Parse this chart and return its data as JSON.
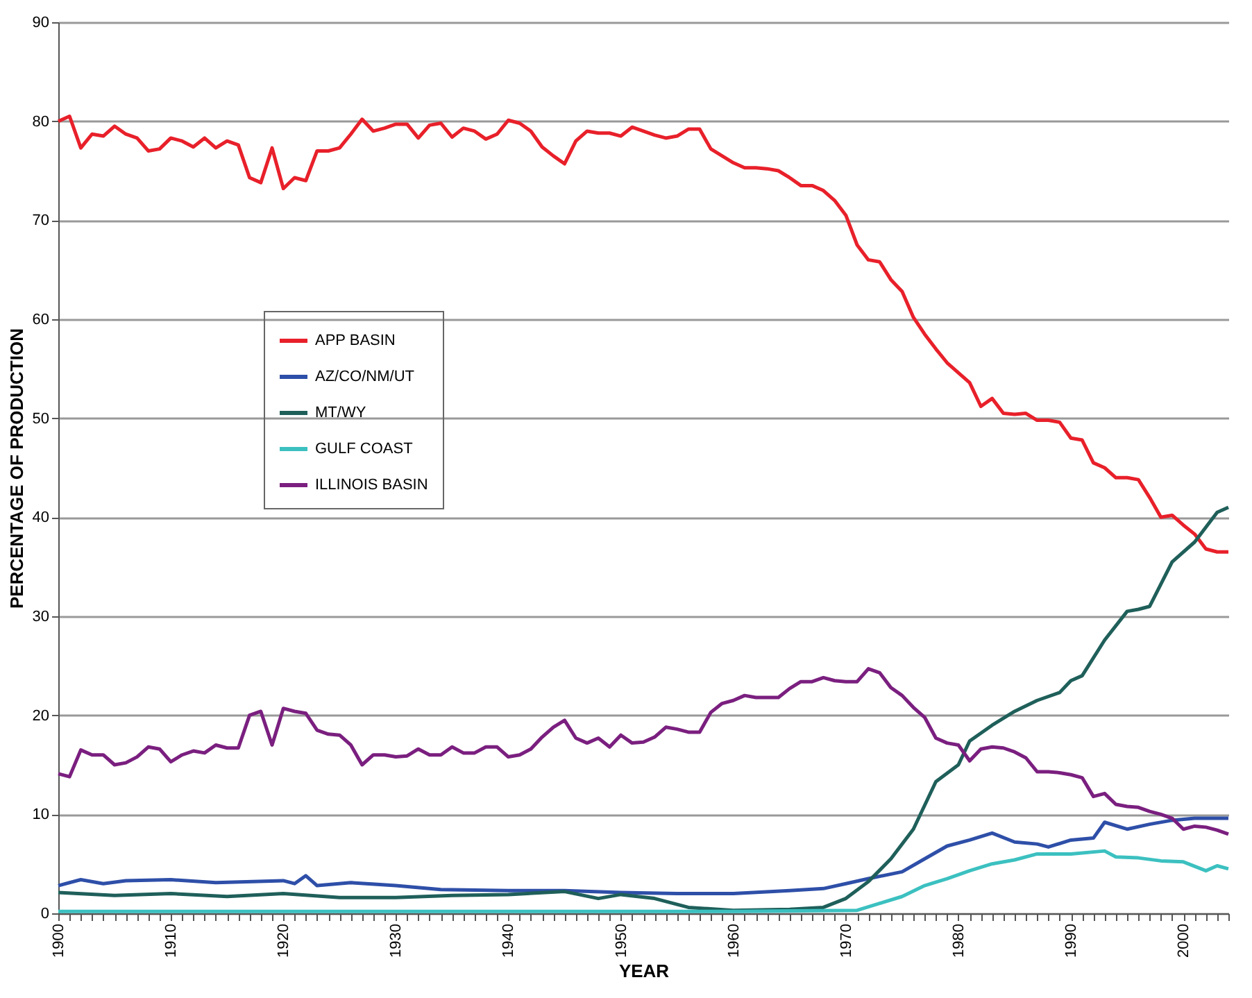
{
  "chart_data": {
    "type": "line",
    "xlabel": "YEAR",
    "ylabel": "PERCENTAGE OF PRODUCTION",
    "xlim": [
      1900,
      2004
    ],
    "ylim": [
      0,
      90
    ],
    "yticks": [
      0,
      10,
      20,
      30,
      40,
      50,
      60,
      70,
      80,
      90
    ],
    "xticks": [
      1900,
      {
        "value": 1901,
        "label": null
      },
      {
        "value": 1902,
        "label": null
      },
      {
        "value": 1903,
        "label": null
      },
      {
        "value": 1904,
        "label": null
      },
      {
        "value": 1905,
        "label": null
      },
      {
        "value": 1906,
        "label": null
      },
      {
        "value": 1907,
        "label": null
      },
      {
        "value": 1908,
        "label": null
      },
      {
        "value": 1909,
        "label": null
      },
      1910,
      {
        "value": 1911,
        "label": null
      },
      {
        "value": 1912,
        "label": null
      },
      {
        "value": 1913,
        "label": null
      },
      {
        "value": 1914,
        "label": null
      },
      {
        "value": 1915,
        "label": null
      },
      {
        "value": 1916,
        "label": null
      },
      {
        "value": 1917,
        "label": null
      },
      {
        "value": 1918,
        "label": null
      },
      {
        "value": 1919,
        "label": null
      },
      1920,
      {
        "value": 1921,
        "label": null
      },
      {
        "value": 1922,
        "label": null
      },
      {
        "value": 1923,
        "label": null
      },
      {
        "value": 1924,
        "label": null
      },
      {
        "value": 1925,
        "label": null
      },
      {
        "value": 1926,
        "label": null
      },
      {
        "value": 1927,
        "label": null
      },
      {
        "value": 1928,
        "label": null
      },
      {
        "value": 1929,
        "label": null
      },
      1930,
      {
        "value": 1931,
        "label": null
      },
      {
        "value": 1932,
        "label": null
      },
      {
        "value": 1933,
        "label": null
      },
      {
        "value": 1934,
        "label": null
      },
      {
        "value": 1935,
        "label": null
      },
      {
        "value": 1936,
        "label": null
      },
      {
        "value": 1937,
        "label": null
      },
      {
        "value": 1938,
        "label": null
      },
      {
        "value": 1939,
        "label": null
      },
      1940,
      {
        "value": 1941,
        "label": null
      },
      {
        "value": 1942,
        "label": null
      },
      {
        "value": 1943,
        "label": null
      },
      {
        "value": 1944,
        "label": null
      },
      {
        "value": 1945,
        "label": null
      },
      {
        "value": 1946,
        "label": null
      },
      {
        "value": 1947,
        "label": null
      },
      {
        "value": 1948,
        "label": null
      },
      {
        "value": 1949,
        "label": null
      },
      1950,
      {
        "value": 1951,
        "label": null
      },
      {
        "value": 1952,
        "label": null
      },
      {
        "value": 1953,
        "label": null
      },
      {
        "value": 1954,
        "label": null
      },
      {
        "value": 1955,
        "label": null
      },
      {
        "value": 1956,
        "label": null
      },
      {
        "value": 1957,
        "label": null
      },
      {
        "value": 1958,
        "label": null
      },
      {
        "value": 1959,
        "label": null
      },
      1960,
      {
        "value": 1961,
        "label": null
      },
      {
        "value": 1962,
        "label": null
      },
      {
        "value": 1963,
        "label": null
      },
      {
        "value": 1964,
        "label": null
      },
      {
        "value": 1965,
        "label": null
      },
      {
        "value": 1966,
        "label": null
      },
      {
        "value": 1967,
        "label": null
      },
      {
        "value": 1968,
        "label": null
      },
      {
        "value": 1969,
        "label": null
      },
      1970,
      {
        "value": 1971,
        "label": null
      },
      {
        "value": 1972,
        "label": null
      },
      {
        "value": 1973,
        "label": null
      },
      {
        "value": 1974,
        "label": null
      },
      {
        "value": 1975,
        "label": null
      },
      {
        "value": 1976,
        "label": null
      },
      {
        "value": 1977,
        "label": null
      },
      {
        "value": 1978,
        "label": null
      },
      {
        "value": 1979,
        "label": null
      },
      1980,
      {
        "value": 1981,
        "label": null
      },
      {
        "value": 1982,
        "label": null
      },
      {
        "value": 1983,
        "label": null
      },
      {
        "value": 1984,
        "label": null
      },
      {
        "value": 1985,
        "label": null
      },
      {
        "value": 1986,
        "label": null
      },
      {
        "value": 1987,
        "label": null
      },
      {
        "value": 1988,
        "label": null
      },
      {
        "value": 1989,
        "label": null
      },
      1990,
      {
        "value": 1991,
        "label": null
      },
      {
        "value": 1992,
        "label": null
      },
      {
        "value": 1993,
        "label": null
      },
      {
        "value": 1994,
        "label": null
      },
      {
        "value": 1995,
        "label": null
      },
      {
        "value": 1996,
        "label": null
      },
      {
        "value": 1997,
        "label": null
      },
      {
        "value": 1998,
        "label": null
      },
      {
        "value": 1999,
        "label": null
      },
      2000,
      {
        "value": 2001,
        "label": null
      },
      {
        "value": 2002,
        "label": null
      },
      {
        "value": 2003,
        "label": null
      },
      {
        "value": 2004,
        "label": null
      }
    ],
    "grid": "y",
    "legend": "top left",
    "marker": "none",
    "line_style": "solid",
    "series": [
      {
        "name": "APP BASIN",
        "color": "#e8202a",
        "x": [
          1900,
          1901,
          1902,
          1903,
          1904,
          1905,
          1906,
          1907,
          1908,
          1909,
          1910,
          1911,
          1912,
          1913,
          1914,
          1915,
          1916,
          1917,
          1918,
          1919,
          1920,
          1921,
          1922,
          1923,
          1924,
          1925,
          1926,
          1927,
          1928,
          1929,
          1930,
          1931,
          1932,
          1933,
          1934,
          1935,
          1936,
          1937,
          1938,
          1939,
          1940,
          1941,
          1942,
          1943,
          1944,
          1945,
          1946,
          1947,
          1948,
          1949,
          1950,
          1951,
          1952,
          1953,
          1954,
          1955,
          1956,
          1957,
          1958,
          1959,
          1960,
          1961,
          1962,
          1963,
          1964,
          1965,
          1966,
          1967,
          1968,
          1969,
          1970,
          1971,
          1972,
          1973,
          1974,
          1975,
          1976,
          1977,
          1978,
          1979,
          1980,
          1981,
          1982,
          1983,
          1984,
          1985,
          1986,
          1987,
          1988,
          1989,
          1990,
          1991,
          1992,
          1993,
          1994,
          1995,
          1996,
          1997,
          1998,
          1999,
          2000,
          2001,
          2002,
          2003,
          2004
        ],
        "values": [
          80,
          80.5,
          77.3,
          78.7,
          78.5,
          79.5,
          78.7,
          78.3,
          77,
          77.2,
          78.3,
          78,
          77.4,
          78.3,
          77.3,
          78,
          77.6,
          74.3,
          73.8,
          77.3,
          73.2,
          74.3,
          74,
          77,
          77,
          77.3,
          78.7,
          80.2,
          79,
          79.3,
          79.7,
          79.7,
          78.3,
          79.6,
          79.8,
          78.4,
          79.3,
          79,
          78.2,
          78.7,
          80.1,
          79.8,
          79,
          77.4,
          76.5,
          75.7,
          78,
          79,
          78.8,
          78.8,
          78.5,
          79.4,
          79,
          78.6,
          78.3,
          78.5,
          79.2,
          79.2,
          77.2,
          76.5,
          75.8,
          75.3,
          75.3,
          75.2,
          75,
          74.3,
          73.5,
          73.5,
          73,
          72,
          70.5,
          67.5,
          66,
          65.8,
          64,
          62.8,
          60.2,
          58.5,
          57,
          55.6,
          54.6,
          53.6,
          51.2,
          52,
          50.5,
          50.4,
          50.5,
          49.8,
          49.8,
          49.6,
          48,
          47.8,
          45.5,
          45,
          44,
          44,
          43.8,
          42,
          40,
          40.2,
          39.2,
          38.3,
          36.8,
          36.5,
          36.5
        ]
      },
      {
        "name": "AZ/CO/NM/UT",
        "color": "#2e4fa8",
        "x": [
          1900,
          1902,
          1904,
          1906,
          1910,
          1914,
          1920,
          1921,
          1922,
          1923,
          1926,
          1930,
          1934,
          1940,
          1945,
          1950,
          1955,
          1960,
          1965,
          1968,
          1970,
          1972,
          1975,
          1977,
          1979,
          1981,
          1983,
          1985,
          1987,
          1988,
          1990,
          1992,
          1993,
          1995,
          1997,
          1999,
          2001,
          2004
        ],
        "values": [
          2.8,
          3.4,
          3,
          3.3,
          3.4,
          3.1,
          3.3,
          3,
          3.8,
          2.8,
          3.1,
          2.8,
          2.4,
          2.3,
          2.3,
          2.1,
          2,
          2,
          2.3,
          2.5,
          3,
          3.5,
          4.2,
          5.5,
          6.8,
          7.4,
          8.1,
          7.2,
          7,
          6.7,
          7.4,
          7.6,
          9.2,
          8.5,
          9,
          9.4,
          9.6,
          9.6
        ]
      },
      {
        "name": "MT/WY",
        "color": "#1f5f5a",
        "x": [
          1900,
          1905,
          1910,
          1915,
          1920,
          1925,
          1930,
          1935,
          1940,
          1945,
          1948,
          1950,
          1953,
          1956,
          1960,
          1965,
          1968,
          1970,
          1972,
          1974,
          1976,
          1978,
          1980,
          1981,
          1983,
          1985,
          1987,
          1989,
          1990,
          1991,
          1993,
          1995,
          1996,
          1997,
          1999,
          2001,
          2003,
          2004
        ],
        "values": [
          2.1,
          1.8,
          2,
          1.7,
          2,
          1.6,
          1.6,
          1.8,
          1.9,
          2.2,
          1.5,
          1.9,
          1.5,
          0.6,
          0.3,
          0.4,
          0.6,
          1.5,
          3.2,
          5.5,
          8.5,
          13.3,
          15,
          17.4,
          19,
          20.4,
          21.5,
          22.3,
          23.5,
          24,
          27.6,
          30.5,
          30.7,
          31,
          35.5,
          37.5,
          40.5,
          41
        ]
      },
      {
        "name": "GULF COAST",
        "color": "#3cc0c0",
        "x": [
          1900,
          1960,
          1971,
          1973,
          1975,
          1977,
          1979,
          1981,
          1983,
          1985,
          1987,
          1990,
          1993,
          1994,
          1996,
          1998,
          2000,
          2002,
          2003,
          2004
        ],
        "values": [
          0.2,
          0.2,
          0.3,
          1,
          1.7,
          2.8,
          3.5,
          4.3,
          5,
          5.4,
          6,
          6,
          6.3,
          5.7,
          5.6,
          5.3,
          5.2,
          4.3,
          4.8,
          4.5
        ]
      },
      {
        "name": "ILLINOIS BASIN",
        "color": "#7a1f7f",
        "x": [
          1900,
          1901,
          1902,
          1903,
          1904,
          1905,
          1906,
          1907,
          1908,
          1909,
          1910,
          1911,
          1912,
          1913,
          1914,
          1915,
          1916,
          1917,
          1918,
          1919,
          1920,
          1921,
          1922,
          1923,
          1924,
          1925,
          1926,
          1927,
          1928,
          1929,
          1930,
          1931,
          1932,
          1933,
          1934,
          1935,
          1936,
          1937,
          1938,
          1939,
          1940,
          1941,
          1942,
          1943,
          1944,
          1945,
          1946,
          1947,
          1948,
          1949,
          1950,
          1951,
          1952,
          1953,
          1954,
          1955,
          1956,
          1957,
          1958,
          1959,
          1960,
          1961,
          1962,
          1963,
          1964,
          1965,
          1966,
          1967,
          1968,
          1969,
          1970,
          1971,
          1972,
          1973,
          1974,
          1975,
          1976,
          1977,
          1978,
          1979,
          1980,
          1981,
          1982,
          1983,
          1984,
          1985,
          1986,
          1987,
          1988,
          1989,
          1990,
          1991,
          1992,
          1993,
          1994,
          1995,
          1996,
          1997,
          1998,
          1999,
          2000,
          2001,
          2002,
          2003,
          2004
        ],
        "values": [
          14.1,
          13.8,
          16.5,
          16,
          16,
          15,
          15.2,
          15.8,
          16.8,
          16.6,
          15.3,
          16,
          16.4,
          16.2,
          17,
          16.7,
          16.7,
          20,
          20.4,
          17,
          20.7,
          20.4,
          20.2,
          18.5,
          18.1,
          18,
          17,
          15,
          16,
          16,
          15.8,
          15.9,
          16.6,
          16,
          16,
          16.8,
          16.2,
          16.2,
          16.8,
          16.8,
          15.8,
          16,
          16.6,
          17.8,
          18.8,
          19.5,
          17.7,
          17.2,
          17.7,
          16.8,
          18,
          17.2,
          17.3,
          17.8,
          18.8,
          18.6,
          18.3,
          18.3,
          20.3,
          21.2,
          21.5,
          22,
          21.8,
          21.8,
          21.8,
          22.7,
          23.4,
          23.4,
          23.8,
          23.5,
          23.4,
          23.4,
          24.7,
          24.3,
          22.8,
          22,
          20.8,
          19.8,
          17.7,
          17.2,
          17,
          15.4,
          16.6,
          16.8,
          16.7,
          16.3,
          15.7,
          14.3,
          14.3,
          14.2,
          14,
          13.7,
          11.8,
          12.1,
          11,
          10.8,
          10.7,
          10.3,
          10,
          9.6,
          8.5,
          8.8,
          8.7,
          8.4,
          8
        ]
      }
    ]
  }
}
